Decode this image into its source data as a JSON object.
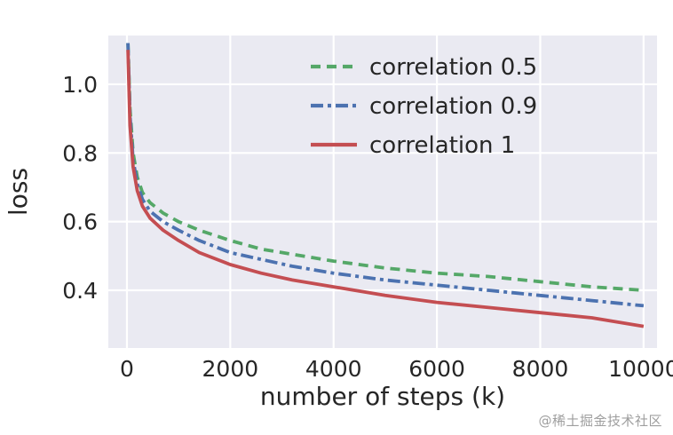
{
  "watermark": {
    "text": "@稀土掘金技术社区"
  },
  "style": {
    "plot_bg": "#eaeaf2",
    "grid_color": "#ffffff",
    "text_color": "#262626",
    "line_width": 3.8
  },
  "chart_data": {
    "type": "line",
    "title": "",
    "xlabel": "number of steps (k)",
    "ylabel": "loss",
    "xlim": [
      -360,
      10260
    ],
    "ylim": [
      0.232,
      1.142
    ],
    "xticks": [
      0,
      2000,
      4000,
      6000,
      8000,
      10000
    ],
    "yticks": [
      0.4,
      0.6,
      0.8,
      1.0
    ],
    "grid": true,
    "legend_position": "upper right",
    "x": [
      20,
      60,
      120,
      200,
      300,
      450,
      700,
      1000,
      1400,
      2000,
      2600,
      3200,
      4000,
      5000,
      6000,
      7000,
      8000,
      9000,
      10000
    ],
    "series": [
      {
        "name": "correlation 0.5",
        "color": "#55a868",
        "dash": "dashed",
        "values": [
          1.12,
          0.93,
          0.8,
          0.73,
          0.685,
          0.655,
          0.625,
          0.6,
          0.575,
          0.545,
          0.52,
          0.505,
          0.485,
          0.465,
          0.45,
          0.44,
          0.425,
          0.41,
          0.4
        ]
      },
      {
        "name": "correlation 0.9",
        "color": "#4c72b0",
        "dash": "dashdot",
        "values": [
          1.12,
          0.91,
          0.78,
          0.71,
          0.665,
          0.63,
          0.6,
          0.575,
          0.545,
          0.51,
          0.49,
          0.47,
          0.45,
          0.43,
          0.415,
          0.4,
          0.385,
          0.37,
          0.355
        ]
      },
      {
        "name": "correlation 1",
        "color": "#c44e52",
        "dash": "solid",
        "values": [
          1.1,
          0.88,
          0.76,
          0.69,
          0.645,
          0.61,
          0.575,
          0.545,
          0.51,
          0.475,
          0.45,
          0.43,
          0.41,
          0.385,
          0.365,
          0.35,
          0.335,
          0.32,
          0.295
        ]
      }
    ]
  }
}
